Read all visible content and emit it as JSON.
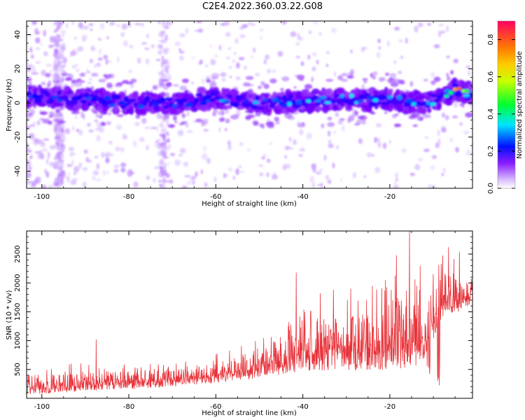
{
  "title": "C2E4.2022.360.03.22.G08",
  "chart_data": [
    {
      "type": "heatmap",
      "xlabel": "Height of straight line (km)",
      "ylabel": "Frequency (Hz)",
      "xlim": [
        -103.5,
        -1
      ],
      "ylim": [
        -50,
        48
      ],
      "xticks": [
        -100,
        -80,
        -60,
        -40,
        -20
      ],
      "yticks": [
        -40,
        -20,
        0,
        20,
        40
      ],
      "ridge_center_hz": [
        {
          "x": -103,
          "y": 4
        },
        {
          "x": -90,
          "y": 2
        },
        {
          "x": -80,
          "y": 0
        },
        {
          "x": -70,
          "y": 0
        },
        {
          "x": -60,
          "y": 3
        },
        {
          "x": -50,
          "y": 0
        },
        {
          "x": -40,
          "y": 1
        },
        {
          "x": -30,
          "y": 2
        },
        {
          "x": -20,
          "y": 2
        },
        {
          "x": -12,
          "y": 0
        },
        {
          "x": -8,
          "y": 3
        },
        {
          "x": -5,
          "y": 8
        },
        {
          "x": -2,
          "y": 6
        }
      ],
      "colorbar": {
        "label": "Normalized spectral amplitude",
        "range": [
          0,
          0.9
        ],
        "ticks": [
          "0.0",
          "0.2",
          "0.4",
          "0.6",
          "0.8"
        ],
        "colormap": [
          "#ffffff",
          "#c9a3ff",
          "#7b00ff",
          "#0000ff",
          "#00e5ff",
          "#00ff00",
          "#ffff00",
          "#ff8000",
          "#ff0040"
        ]
      }
    },
    {
      "type": "line",
      "xlabel": "Height of straight line (km)",
      "ylabel": "SNR (10 * v/v)",
      "xlim": [
        -103.5,
        -1
      ],
      "ylim": [
        0,
        2900
      ],
      "xticks": [
        -100,
        -80,
        -60,
        -40,
        -20
      ],
      "yticks": [
        500,
        1000,
        1500,
        2000,
        2500
      ],
      "color": "#e8333a",
      "envelope": [
        {
          "x": -103,
          "base": 60,
          "peak": 560
        },
        {
          "x": -90,
          "base": 120,
          "peak": 620
        },
        {
          "x": -80,
          "base": 160,
          "peak": 620
        },
        {
          "x": -70,
          "base": 200,
          "peak": 620
        },
        {
          "x": -62,
          "base": 250,
          "peak": 720
        },
        {
          "x": -55,
          "base": 300,
          "peak": 900
        },
        {
          "x": -48,
          "base": 380,
          "peak": 1200
        },
        {
          "x": -40,
          "base": 450,
          "peak": 1700
        },
        {
          "x": -32,
          "base": 500,
          "peak": 1800
        },
        {
          "x": -25,
          "base": 480,
          "peak": 1900
        },
        {
          "x": -18,
          "base": 500,
          "peak": 2300
        },
        {
          "x": -12,
          "base": 600,
          "peak": 2000
        },
        {
          "x": -8,
          "base": 1400,
          "peak": 2500
        },
        {
          "x": -1,
          "base": 1600,
          "peak": 2400
        }
      ],
      "spikes": [
        {
          "x": -87.5,
          "y": 1020
        },
        {
          "x": -41.5,
          "y": 2180
        },
        {
          "x": -36,
          "y": 1820
        },
        {
          "x": -33,
          "y": 1880
        },
        {
          "x": -29,
          "y": 1900
        },
        {
          "x": -24,
          "y": 1950
        },
        {
          "x": -21,
          "y": 2050
        },
        {
          "x": -18.5,
          "y": 2480
        },
        {
          "x": -15.5,
          "y": 2910
        },
        {
          "x": -13,
          "y": 2300
        },
        {
          "x": -10,
          "y": 2150
        },
        {
          "x": -6.5,
          "y": 2620
        },
        {
          "x": -4,
          "y": 2540
        }
      ]
    }
  ]
}
